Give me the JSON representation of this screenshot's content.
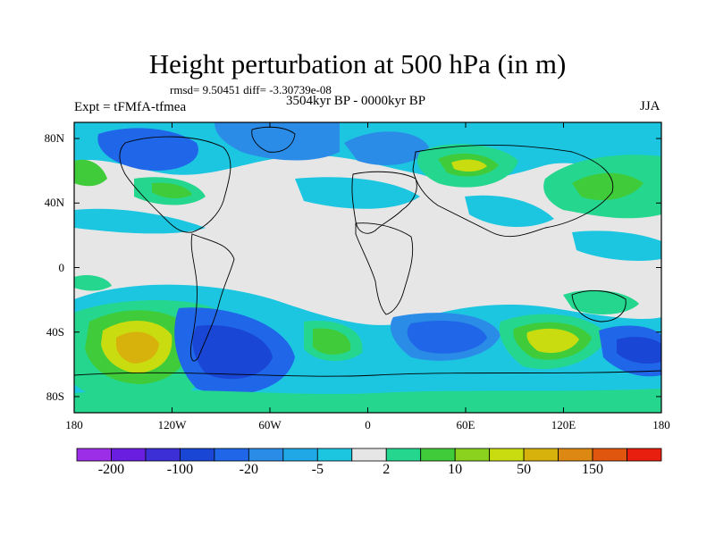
{
  "title": "Height perturbation at 500 hPa (in m)",
  "stats": "rmsd= 9.50451 diff= -3.30739e-08",
  "experiment": "Expt = tFMfA-tfmea",
  "period": "3504kyr BP - 0000kyr BP",
  "season": "JJA",
  "map": {
    "lon_range": [
      -180,
      180
    ],
    "lat_range": [
      -90,
      90
    ],
    "lat_ticks": [
      {
        "value": 80,
        "label": "80N"
      },
      {
        "value": 40,
        "label": "40N"
      },
      {
        "value": 0,
        "label": "0"
      },
      {
        "value": -40,
        "label": "40S"
      },
      {
        "value": -80,
        "label": "80S"
      }
    ],
    "lon_ticks": [
      {
        "value": -180,
        "label": "180"
      },
      {
        "value": -120,
        "label": "120W"
      },
      {
        "value": -60,
        "label": "60W"
      },
      {
        "value": 0,
        "label": "0"
      },
      {
        "value": 60,
        "label": "60E"
      },
      {
        "value": 120,
        "label": "120E"
      },
      {
        "value": 180,
        "label": "180"
      }
    ]
  },
  "colorbar": {
    "colors": [
      "#9d2ee8",
      "#6a1fe0",
      "#3c2fd6",
      "#1a46d6",
      "#1f66e8",
      "#2b8ce8",
      "#20a8e6",
      "#1cc6e0",
      "#e6e6e6",
      "#25d68f",
      "#40cc3a",
      "#8ad21e",
      "#c8dc10",
      "#d8b20c",
      "#dc8812",
      "#e0560e",
      "#e81e0e"
    ],
    "tick_labels": [
      {
        "boundary": 1,
        "label": "-200"
      },
      {
        "boundary": 3,
        "label": "-100"
      },
      {
        "boundary": 5,
        "label": "-20"
      },
      {
        "boundary": 7,
        "label": "-5"
      },
      {
        "boundary": 9,
        "label": "2"
      },
      {
        "boundary": 11,
        "label": "10"
      },
      {
        "boundary": 13,
        "label": "50"
      },
      {
        "boundary": 15,
        "label": "150"
      }
    ]
  }
}
